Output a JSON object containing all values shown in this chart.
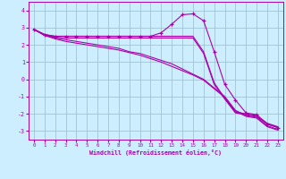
{
  "bg_color": "#cceeff",
  "line_color": "#aa00aa",
  "grid_color": "#99bbcc",
  "xlabel": "Windchill (Refroidissement éolien,°C)",
  "xlim": [
    -0.5,
    23.5
  ],
  "ylim": [
    -3.5,
    4.5
  ],
  "yticks": [
    -3,
    -2,
    -1,
    0,
    1,
    2,
    3,
    4
  ],
  "xticks": [
    0,
    1,
    2,
    3,
    4,
    5,
    6,
    7,
    8,
    9,
    10,
    11,
    12,
    13,
    14,
    15,
    16,
    17,
    18,
    19,
    20,
    21,
    22,
    23
  ],
  "lines": [
    {
      "x": [
        0,
        1,
        2,
        3,
        4,
        5,
        6,
        7,
        8,
        9,
        10,
        11,
        12,
        13,
        14,
        15,
        16,
        17,
        18,
        19,
        20,
        21,
        22,
        23
      ],
      "y": [
        2.9,
        2.6,
        2.5,
        2.5,
        2.5,
        2.5,
        2.5,
        2.5,
        2.5,
        2.5,
        2.5,
        2.5,
        2.5,
        2.5,
        2.5,
        2.5,
        1.6,
        -0.2,
        -1.1,
        -1.9,
        -2.0,
        -2.1,
        -2.55,
        -2.75
      ],
      "markers": false
    },
    {
      "x": [
        0,
        1,
        2,
        3,
        4,
        5,
        6,
        7,
        8,
        9,
        10,
        11,
        12,
        13,
        14,
        15,
        16,
        17,
        18,
        19,
        20,
        21,
        22,
        23
      ],
      "y": [
        2.9,
        2.55,
        2.45,
        2.4,
        2.4,
        2.4,
        2.4,
        2.4,
        2.4,
        2.4,
        2.4,
        2.4,
        2.4,
        2.4,
        2.4,
        2.4,
        1.5,
        -0.3,
        -1.15,
        -1.95,
        -2.05,
        -2.15,
        -2.6,
        -2.8
      ],
      "markers": false
    },
    {
      "x": [
        0,
        1,
        2,
        3,
        4,
        5,
        6,
        7,
        8,
        9,
        10,
        11,
        12,
        13,
        14,
        15,
        16,
        17,
        18,
        19,
        20,
        21,
        22,
        23
      ],
      "y": [
        2.9,
        2.6,
        2.4,
        2.3,
        2.2,
        2.1,
        2.0,
        1.9,
        1.8,
        1.6,
        1.5,
        1.3,
        1.1,
        0.9,
        0.6,
        0.3,
        0.0,
        -0.5,
        -1.0,
        -1.8,
        -2.1,
        -2.2,
        -2.7,
        -2.9
      ],
      "markers": false
    },
    {
      "x": [
        0,
        1,
        2,
        3,
        4,
        5,
        6,
        7,
        8,
        9,
        10,
        11,
        12,
        13,
        14,
        15,
        16,
        17,
        18,
        19,
        20,
        21,
        22,
        23
      ],
      "y": [
        2.9,
        2.55,
        2.35,
        2.2,
        2.1,
        2.0,
        1.9,
        1.8,
        1.7,
        1.55,
        1.4,
        1.2,
        1.0,
        0.75,
        0.5,
        0.25,
        -0.05,
        -0.55,
        -1.05,
        -1.85,
        -2.15,
        -2.25,
        -2.75,
        -2.95
      ],
      "markers": false
    },
    {
      "x": [
        0,
        1,
        2,
        3,
        4,
        5,
        6,
        7,
        8,
        9,
        10,
        11,
        12,
        13,
        14,
        15,
        16,
        17,
        18,
        19,
        20,
        21,
        22,
        23
      ],
      "y": [
        2.9,
        2.6,
        2.5,
        2.5,
        2.5,
        2.5,
        2.5,
        2.5,
        2.5,
        2.5,
        2.5,
        2.5,
        2.7,
        3.2,
        3.75,
        3.8,
        3.4,
        1.6,
        -0.3,
        -1.2,
        -1.95,
        -2.05,
        -2.6,
        -2.8
      ],
      "markers": true
    }
  ]
}
